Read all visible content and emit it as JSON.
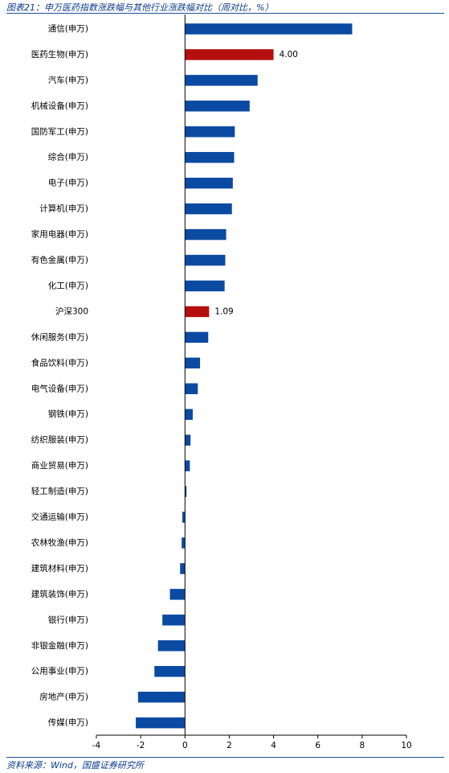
{
  "title": "图表21：申万医药指数涨跌幅与其他行业涨跌幅对比（周对比，%）",
  "source": "资料来源：Wind，国盛证券研究所",
  "colors": {
    "normal": "#0b4aa2",
    "highlight": "#b40f0f",
    "rule": "#1f4e99",
    "text": "#0b3a8c"
  },
  "chart_data": {
    "type": "bar",
    "orientation": "horizontal",
    "categories": [
      "通信(申万)",
      "医药生物(申万)",
      "汽车(申万)",
      "机械设备(申万)",
      "国防军工(申万)",
      "综合(申万)",
      "电子(申万)",
      "计算机(申万)",
      "家用电器(申万)",
      "有色金属(申万)",
      "化工(申万)",
      "沪深300",
      "休闲服务(申万)",
      "食品饮料(申万)",
      "电气设备(申万)",
      "钢铁(申万)",
      "纺织服装(申万)",
      "商业贸易(申万)",
      "轻工制造(申万)",
      "交通运输(申万)",
      "农林牧渔(申万)",
      "建筑材料(申万)",
      "建筑装饰(申万)",
      "银行(申万)",
      "非银金融(申万)",
      "公用事业(申万)",
      "房地产(申万)",
      "传媒(申万)"
    ],
    "values": [
      7.55,
      4.0,
      3.28,
      2.92,
      2.25,
      2.22,
      2.16,
      2.12,
      1.86,
      1.82,
      1.79,
      1.09,
      1.05,
      0.68,
      0.58,
      0.35,
      0.25,
      0.22,
      0.07,
      -0.12,
      -0.15,
      -0.22,
      -0.68,
      -1.02,
      -1.22,
      -1.38,
      -2.12,
      -2.22
    ],
    "highlight": [
      "医药生物(申万)",
      "沪深300"
    ],
    "data_labels": [
      {
        "category": "医药生物(申万)",
        "text": "4.00"
      },
      {
        "category": "沪深300",
        "text": "1.09"
      }
    ],
    "xlim": [
      -4,
      10
    ],
    "xticks": [
      -4,
      -2,
      0,
      2,
      4,
      6,
      8,
      10
    ],
    "grid": false,
    "legend": "none"
  }
}
